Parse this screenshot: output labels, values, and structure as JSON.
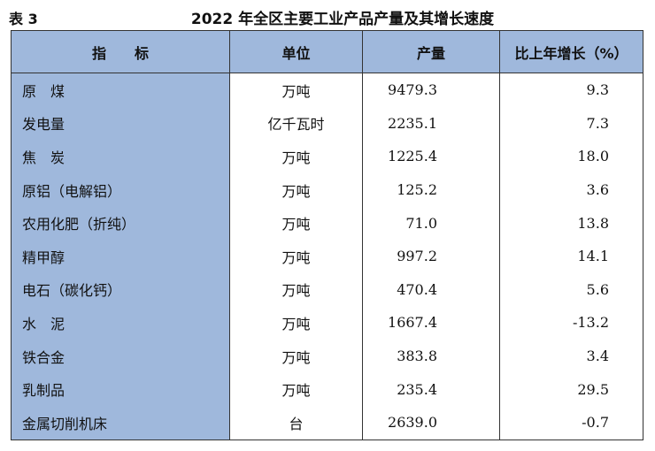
{
  "caption": {
    "table_number": "表 3",
    "title": "2022 年全区主要工业产品产量及其增长速度"
  },
  "headers": {
    "indicator": "指　　标",
    "unit": "单位",
    "output": "产量",
    "growth": "比上年增长（%）"
  },
  "rows": [
    {
      "name": "原　煤",
      "unit": "万吨",
      "output": "9479.3",
      "growth": "9.3"
    },
    {
      "name": "发电量",
      "unit": "亿千瓦时",
      "output": "2235.1",
      "growth": "7.3"
    },
    {
      "name": "焦　炭",
      "unit": "万吨",
      "output": "1225.4",
      "growth": "18.0"
    },
    {
      "name": "原铝（电解铝）",
      "unit": "万吨",
      "output": "125.2",
      "growth": "3.6"
    },
    {
      "name": "农用化肥（折纯）",
      "unit": "万吨",
      "output": "71.0",
      "growth": "13.8"
    },
    {
      "name": "精甲醇",
      "unit": "万吨",
      "output": "997.2",
      "growth": "14.1"
    },
    {
      "name": "电石（碳化钙）",
      "unit": "万吨",
      "output": "470.4",
      "growth": "5.6"
    },
    {
      "name": "水　泥",
      "unit": "万吨",
      "output": "1667.4",
      "growth": "-13.2"
    },
    {
      "name": "铁合金",
      "unit": "万吨",
      "output": "383.8",
      "growth": "3.4"
    },
    {
      "name": "乳制品",
      "unit": "万吨",
      "output": "235.4",
      "growth": "29.5"
    },
    {
      "name": "金属切削机床",
      "unit": "台",
      "output": "2639.0",
      "growth": "-0.7"
    }
  ],
  "colors": {
    "header_fill": "#9fb8dc",
    "first_column_fill": "#9fb8dc"
  }
}
